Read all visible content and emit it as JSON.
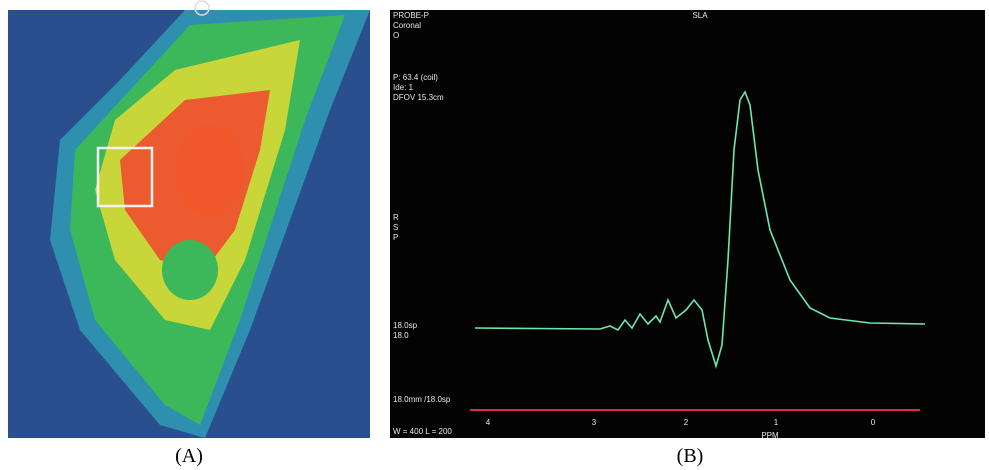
{
  "panel_a": {
    "label": "(A)"
  },
  "panel_b": {
    "label": "(B)",
    "header_left": [
      "PROBE-P",
      "Coronal",
      "O"
    ],
    "header_center": "SLA",
    "info": [
      "P: 63.4 (coil)",
      "Ide: 1",
      "DFOV 15.3cm"
    ],
    "orientation": [
      "R",
      "S",
      "P"
    ],
    "side": [
      "18.0sp",
      "18.0"
    ],
    "footer": [
      "18.0mm /18.0sp",
      "W = 400 L = 200"
    ],
    "axis_ticks": [
      "4",
      "3",
      "2",
      "1",
      "0"
    ],
    "axis_label": "PPM"
  }
}
